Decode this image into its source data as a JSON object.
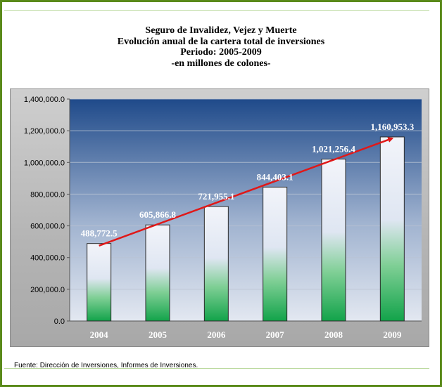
{
  "header": {
    "line1": "Seguro de Invalidez, Vejez y Muerte",
    "line2": "Evolución anual de la cartera total de inversiones",
    "line3": "Periodo: 2005-2009",
    "line4": "-en millones de colones-"
  },
  "footer": {
    "source": "Fuente: Dirección de Inversiones, Informes de Inversiones."
  },
  "colors": {
    "frame": "#5a8a1a",
    "plot_top": "#1f4a8a",
    "plot_bottom": "#e3e8f1",
    "bar_top": "#f2f4fa",
    "bar_bottom": "#12a34a",
    "trend": "#e01818"
  },
  "chart_data": {
    "type": "bar",
    "title": "",
    "xlabel": "",
    "ylabel": "",
    "categories": [
      "2004",
      "2005",
      "2006",
      "2007",
      "2008",
      "2009"
    ],
    "values": [
      488772.5,
      605866.8,
      721955.1,
      844403.1,
      1021256.4,
      1160953.3
    ],
    "data_labels": [
      "488,772.5",
      "605,866.8",
      "721,955.1",
      "844,403.1",
      "1,021,256.4",
      "1,160,953.3"
    ],
    "ylim": [
      0,
      1400000
    ],
    "yticks": [
      0,
      200000,
      400000,
      600000,
      800000,
      1000000,
      1200000,
      1400000
    ],
    "ytick_labels": [
      "0.0",
      "200,000.0",
      "400,000.0",
      "600,000.0",
      "800,000.0",
      "1,000,000.0",
      "1,200,000.0",
      "1,400,000.0"
    ],
    "grid": true,
    "legend": "none",
    "trend_arrow": {
      "from_category": "2004",
      "to_category": "2009",
      "from_value": 475000,
      "to_value": 1160953.3
    }
  }
}
